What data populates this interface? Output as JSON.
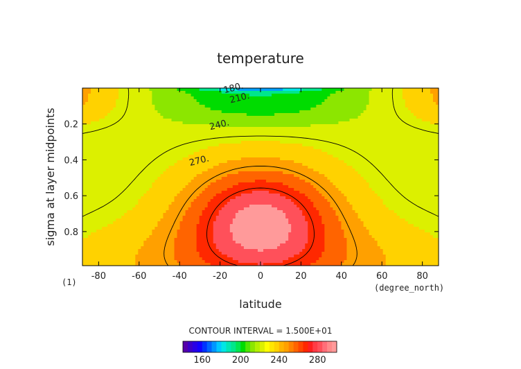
{
  "chart_data": {
    "type": "heatmap",
    "title": "temperature",
    "xlabel": "latitude",
    "ylabel": "sigma at layer midpoints",
    "x_units": "(degree_north)",
    "y_units": "(1)",
    "xlim": [
      -88,
      88
    ],
    "ylim": [
      0.99,
      0.0
    ],
    "x_ticks": [
      -80,
      -60,
      -40,
      -20,
      0,
      20,
      40,
      60,
      80
    ],
    "y_ticks": [
      0.2,
      0.4,
      0.6,
      0.8
    ],
    "contour_interval_label": "CONTOUR INTERVAL = 1.500E+01",
    "contour_labels": [
      {
        "text": "180.",
        "lat": -13,
        "sigma": 0.015
      },
      {
        "text": "210.",
        "lat": -10,
        "sigma": 0.07
      },
      {
        "text": "240.",
        "lat": -20,
        "sigma": 0.22
      },
      {
        "text": "270.",
        "lat": -30,
        "sigma": 0.42
      }
    ],
    "colorbar": {
      "levels": [
        140,
        145,
        150,
        155,
        160,
        165,
        170,
        175,
        180,
        185,
        190,
        195,
        200,
        205,
        210,
        215,
        220,
        225,
        230,
        235,
        240,
        245,
        250,
        255,
        260,
        265,
        270,
        275,
        280,
        285,
        290,
        295
      ],
      "tick_labels": [
        160,
        200,
        240,
        280
      ],
      "tick_values": [
        160,
        200,
        240,
        280
      ]
    },
    "levels": [
      140,
      155,
      170,
      185,
      200,
      215,
      230,
      245,
      260,
      275,
      290
    ],
    "lines": [
      210,
      240,
      270
    ],
    "grid": false,
    "colors": [
      "#5500aa",
      "#1e00d0",
      "#0050ff",
      "#00a0ff",
      "#00e6e6",
      "#00e68c",
      "#00dc00",
      "#8ce600",
      "#dcf000",
      "#ffd200",
      "#ffa000",
      "#ff6400",
      "#ff2800",
      "#ff505a",
      "#ff9a9a"
    ]
  }
}
